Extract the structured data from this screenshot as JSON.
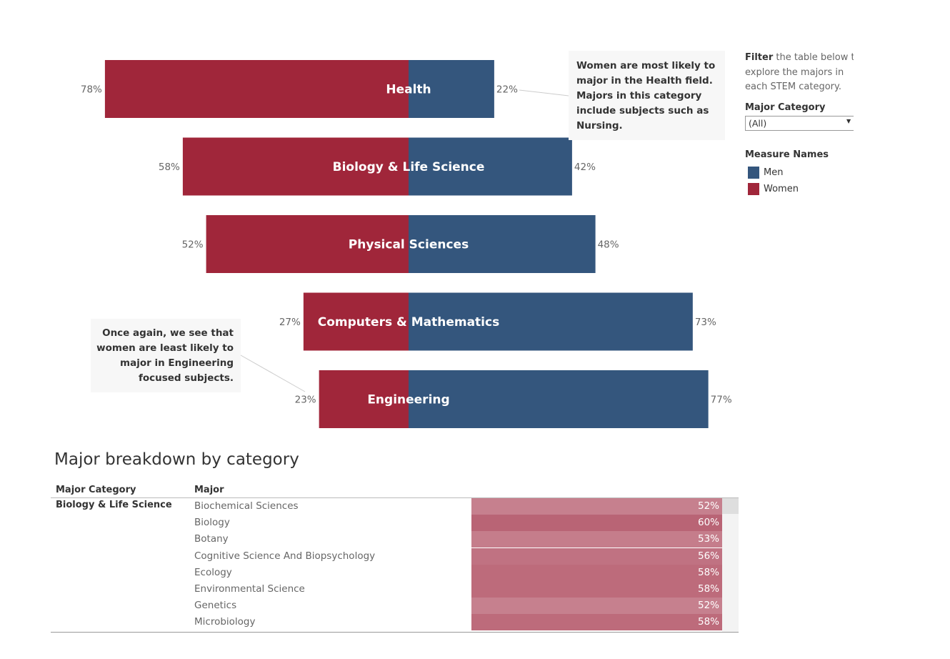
{
  "chart_data": {
    "type": "bar",
    "orientation": "horizontal-diverging",
    "categories": [
      "Health",
      "Biology & Life Science",
      "Physical Sciences",
      "Computers & Mathematics",
      "Engineering"
    ],
    "series": [
      {
        "name": "Women",
        "values": [
          78,
          58,
          52,
          27,
          23
        ],
        "labels": [
          "78%",
          "58%",
          "52%",
          "27%",
          "23%"
        ]
      },
      {
        "name": "Men",
        "values": [
          22,
          42,
          48,
          73,
          77
        ],
        "labels": [
          "22%",
          "42%",
          "48%",
          "73%",
          "77%"
        ]
      }
    ],
    "title": "",
    "xlabel": "",
    "ylabel": "",
    "xlim": [
      0,
      100
    ],
    "grid": false,
    "legend": "right"
  },
  "colors": {
    "women": "#a0263a",
    "men": "#34567d",
    "leader": "#cccccc"
  },
  "annotations": {
    "health": "Women are most likely to major in the Health field. Majors in this category include subjects such as Nursing.",
    "engineering": "Once again, we see that women are least likely to major in Engineering focused subjects."
  },
  "filter": {
    "keyword": "Filter",
    "text_rest": "the table below t",
    "text_line2": "explore the majors in",
    "text_line3": "each STEM category.",
    "label": "Major Category",
    "selected": "(All)"
  },
  "legend": {
    "title": "Measure Names",
    "items": [
      {
        "label": "Men",
        "color": "#34567d"
      },
      {
        "label": "Women",
        "color": "#a0263a"
      }
    ]
  },
  "table": {
    "title": "Major breakdown by category",
    "col_category": "Major Category",
    "col_major": "Major",
    "category": "Biology & Life Science",
    "rows": [
      {
        "major": "Biochemical Sciences",
        "value": 52,
        "label": "52%"
      },
      {
        "major": "Biology",
        "value": 60,
        "label": "60%"
      },
      {
        "major": "Botany",
        "value": 53,
        "label": "53%"
      },
      {
        "major": "Cognitive Science And Biopsychology",
        "value": 56,
        "label": "56%"
      },
      {
        "major": "Ecology",
        "value": 58,
        "label": "58%"
      },
      {
        "major": "Environmental Science",
        "value": 58,
        "label": "58%"
      },
      {
        "major": "Genetics",
        "value": 52,
        "label": "52%"
      },
      {
        "major": "Microbiology",
        "value": 58,
        "label": "58%"
      }
    ]
  }
}
